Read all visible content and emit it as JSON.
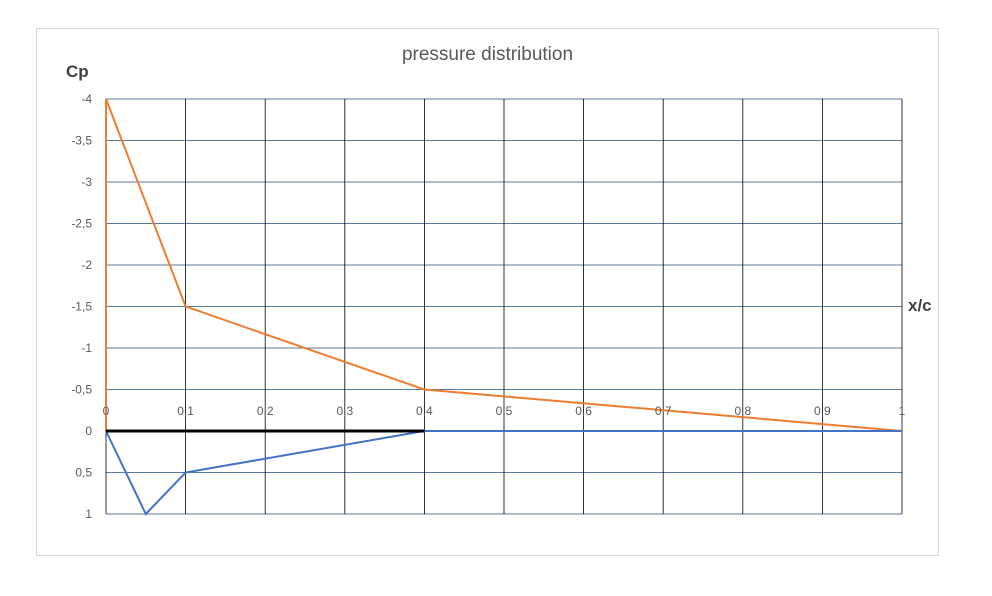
{
  "chart_data": {
    "type": "line",
    "title": "pressure distribution",
    "xlabel": "x/c",
    "ylabel": "Cp",
    "xlim": [
      0,
      1
    ],
    "ylim": [
      -4,
      1
    ],
    "y_inverted": true,
    "grid": true,
    "legend": "none",
    "x_ticks": [
      "0",
      "0,1",
      "0,2",
      "0,3",
      "0,4",
      "0,5",
      "0,6",
      "0,7",
      "0,8",
      "0,9",
      "1"
    ],
    "y_ticks": [
      "-4",
      "-3,5",
      "-3",
      "-2,5",
      "-2",
      "-1,5",
      "-1",
      "-0,5",
      "0",
      "0,5",
      "1"
    ],
    "series": [
      {
        "color": "#ed7d31",
        "x": [
          0,
          0,
          0.1,
          0.4,
          1
        ],
        "y": [
          0,
          -4,
          -1.5,
          -0.5,
          0
        ]
      },
      {
        "color": "#4472c4",
        "x": [
          0,
          0.05,
          0.1,
          0.4,
          1
        ],
        "y": [
          0,
          1,
          0.5,
          0,
          0
        ]
      },
      {
        "color": "#000000",
        "x": [
          0,
          0.4
        ],
        "y": [
          0,
          0
        ]
      }
    ]
  }
}
